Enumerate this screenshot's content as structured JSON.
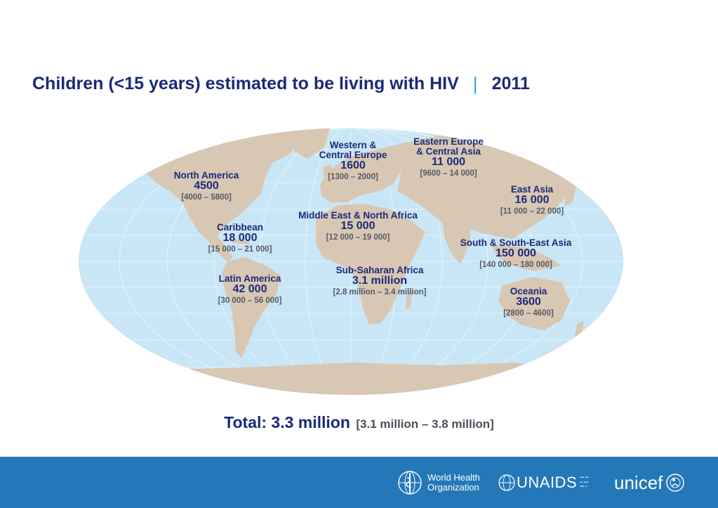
{
  "title": {
    "main": "Children (<15 years) estimated to be living with HIV",
    "separator": "|",
    "year": "2011"
  },
  "regions": [
    {
      "id": "western-central-europe",
      "name_lines": [
        "Western &",
        "Central Europe"
      ],
      "value": "1600",
      "range": "[1300 – 2000]"
    },
    {
      "id": "eastern-europe-central-asia",
      "name_lines": [
        "Eastern Europe",
        "& Central Asia"
      ],
      "value": "11 000",
      "range": "[9600 – 14 000]"
    },
    {
      "id": "north-america",
      "name_lines": [
        "North America"
      ],
      "value": "4500",
      "range": "[4000 – 5800]"
    },
    {
      "id": "east-asia",
      "name_lines": [
        "East Asia"
      ],
      "value": "16 000",
      "range": "[11 000 – 22 000]"
    },
    {
      "id": "middle-east-north-africa",
      "name_lines": [
        "Middle East & North Africa"
      ],
      "value": "15 000",
      "range": "[12 000 – 19 000]"
    },
    {
      "id": "caribbean",
      "name_lines": [
        "Caribbean"
      ],
      "value": "18 000",
      "range": "[15 000 – 21 000]"
    },
    {
      "id": "south-south-east-asia",
      "name_lines": [
        "South & South-East Asia"
      ],
      "value": "150 000",
      "range": "[140 000 – 180 000]"
    },
    {
      "id": "sub-saharan-africa",
      "name_lines": [
        "Sub-Saharan Africa"
      ],
      "value": "3.1 million",
      "range": "[2.8 million – 3.4 million]"
    },
    {
      "id": "latin-america",
      "name_lines": [
        "Latin America"
      ],
      "value": "42 000",
      "range": "[30 000 – 56 000]"
    },
    {
      "id": "oceania",
      "name_lines": [
        "Oceania"
      ],
      "value": "3600",
      "range": "[2800 – 4600]"
    }
  ],
  "total": {
    "label": "Total: 3.3 million",
    "range": "[3.1 million – 3.8 million]"
  },
  "footer": {
    "who_line1": "World Health",
    "who_line2": "Organization",
    "unaids": "UNAIDS",
    "unicef": "unicef"
  },
  "colors": {
    "title": "#1b2a78",
    "separator": "#2ea6e0",
    "ocean": "#c9e6f6",
    "land": "#d8c7b3",
    "footer_bar": "#2478b8"
  }
}
